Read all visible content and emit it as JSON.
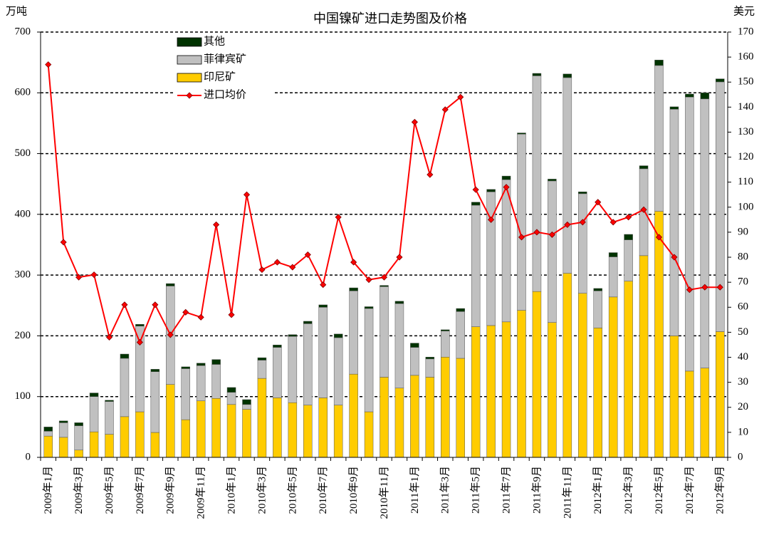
{
  "chart_data": {
    "type": "bar+line",
    "title": "中国镍矿进口走势图及价格",
    "ylabel": "万吨",
    "y2label": "美元",
    "categories": [
      "2009年1月",
      null,
      "2009年3月",
      null,
      "2009年5月",
      null,
      "2009年7月",
      null,
      "2009年9月",
      null,
      "2009年11月",
      null,
      "2010年1月",
      null,
      "2010年3月",
      null,
      "2010年5月",
      null,
      "2010年7月",
      null,
      "2010年9月",
      null,
      "2010年11月",
      null,
      "2011年1月",
      null,
      "2011年3月",
      null,
      "2011年5月",
      null,
      "2011年7月",
      null,
      "2011年9月",
      null,
      "2011年11月",
      null,
      "2012年1月",
      null,
      "2012年3月",
      null,
      "2012年5月",
      null,
      "2012年7月",
      null,
      "2012年9月"
    ],
    "series": [
      {
        "name": "印尼矿",
        "color": "#ffcc00",
        "values": [
          35,
          33,
          12,
          42,
          38,
          67,
          75,
          41,
          120,
          62,
          93,
          97,
          87,
          79,
          130,
          98,
          90,
          86,
          98,
          86,
          137,
          75,
          132,
          114,
          135,
          132,
          165,
          163,
          215,
          217,
          223,
          242,
          273,
          222,
          303,
          270,
          213,
          264,
          290,
          332,
          405,
          200,
          142,
          147,
          207
        ]
      },
      {
        "name": "菲律宾矿",
        "color": "#c0c0c0",
        "values": [
          8,
          24,
          40,
          58,
          54,
          96,
          141,
          100,
          162,
          84,
          58,
          56,
          20,
          8,
          30,
          83,
          109,
          134,
          149,
          111,
          137,
          170,
          149,
          139,
          46,
          30,
          43,
          77,
          200,
          220,
          234,
          290,
          355,
          233,
          322,
          164,
          61,
          66,
          68,
          143,
          240,
          373,
          451,
          443,
          411
        ]
      },
      {
        "name": "其他",
        "color": "#003300",
        "values": [
          7,
          3,
          5,
          6,
          2,
          7,
          3,
          4,
          4,
          3,
          4,
          8,
          8,
          8,
          4,
          4,
          3,
          4,
          4,
          6,
          5,
          3,
          2,
          4,
          7,
          3,
          2,
          5,
          5,
          4,
          6,
          2,
          4,
          3,
          6,
          3,
          4,
          7,
          9,
          5,
          9,
          4,
          5,
          10,
          5
        ]
      },
      {
        "name": "进口均价",
        "color": "#ff0000",
        "axis": "y2",
        "values": [
          157,
          86,
          72,
          73,
          48,
          61,
          46,
          61,
          49,
          58,
          56,
          93,
          57,
          105,
          75,
          78,
          76,
          81,
          69,
          96,
          78,
          71,
          72,
          80,
          134,
          113,
          139,
          144,
          107,
          95,
          108,
          88,
          90,
          89,
          93,
          94,
          102,
          94,
          96,
          99,
          88,
          80,
          67,
          68,
          68
        ]
      }
    ],
    "ylim": [
      0,
      700
    ],
    "yticks": [
      0,
      100,
      200,
      300,
      400,
      500,
      600,
      700
    ],
    "y2lim": [
      0,
      170
    ],
    "y2ticks": [
      0,
      10,
      20,
      30,
      40,
      50,
      60,
      70,
      80,
      90,
      100,
      110,
      120,
      130,
      140,
      150,
      160,
      170
    ],
    "grid": true,
    "legend": "upper left"
  }
}
